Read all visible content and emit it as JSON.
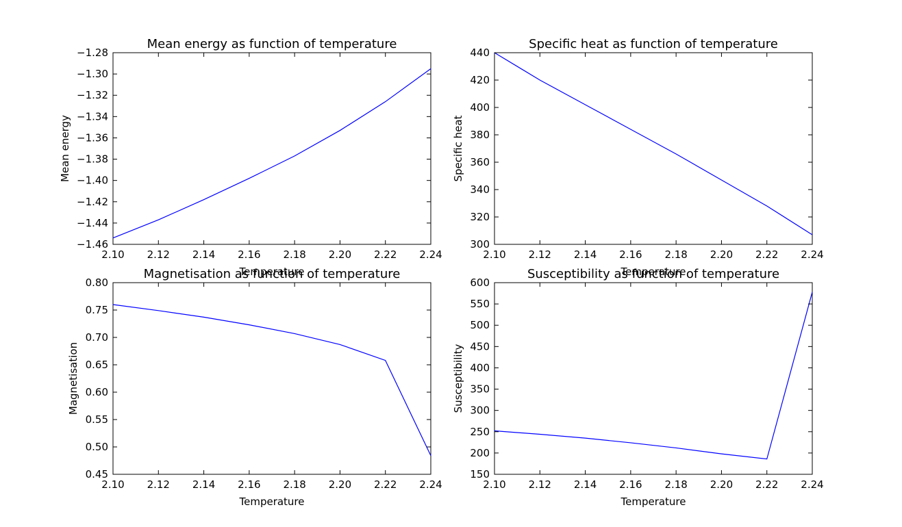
{
  "chart_data": [
    {
      "type": "line",
      "title": "Mean energy as function of temperature",
      "xlabel": "Temperature",
      "ylabel": "Mean energy",
      "xlim": [
        2.1,
        2.24
      ],
      "ylim": [
        -1.46,
        -1.28
      ],
      "xticks": [
        "2.10",
        "2.12",
        "2.14",
        "2.16",
        "2.18",
        "2.20",
        "2.22",
        "2.24"
      ],
      "yticks": [
        "−1.46",
        "−1.44",
        "−1.42",
        "−1.40",
        "−1.38",
        "−1.36",
        "−1.34",
        "−1.32",
        "−1.30",
        "−1.28"
      ],
      "color": "#0000ff",
      "x": [
        2.1,
        2.12,
        2.14,
        2.16,
        2.18,
        2.2,
        2.22,
        2.24
      ],
      "y": [
        -1.454,
        -1.437,
        -1.418,
        -1.398,
        -1.377,
        -1.353,
        -1.326,
        -1.295
      ]
    },
    {
      "type": "line",
      "title": "Specific heat as function of temperature",
      "xlabel": "Temperature",
      "ylabel": "Specific heat",
      "xlim": [
        2.1,
        2.24
      ],
      "ylim": [
        300,
        440
      ],
      "xticks": [
        "2.10",
        "2.12",
        "2.14",
        "2.16",
        "2.18",
        "2.20",
        "2.22",
        "2.24"
      ],
      "yticks": [
        "300",
        "320",
        "340",
        "360",
        "380",
        "400",
        "420",
        "440"
      ],
      "color": "#0000ff",
      "x": [
        2.1,
        2.12,
        2.14,
        2.16,
        2.18,
        2.2,
        2.22,
        2.24
      ],
      "y": [
        440,
        420,
        402,
        384,
        366,
        347,
        328,
        307
      ]
    },
    {
      "type": "line",
      "title": "Magnetisation as function of temperature",
      "xlabel": "Temperature",
      "ylabel": "Magnetisation",
      "xlim": [
        2.1,
        2.24
      ],
      "ylim": [
        0.45,
        0.8
      ],
      "xticks": [
        "2.10",
        "2.12",
        "2.14",
        "2.16",
        "2.18",
        "2.20",
        "2.22",
        "2.24"
      ],
      "yticks": [
        "0.45",
        "0.50",
        "0.55",
        "0.60",
        "0.65",
        "0.70",
        "0.75",
        "0.80"
      ],
      "color": "#0000ff",
      "x": [
        2.1,
        2.12,
        2.14,
        2.16,
        2.18,
        2.2,
        2.22,
        2.24
      ],
      "y": [
        0.76,
        0.749,
        0.737,
        0.723,
        0.707,
        0.687,
        0.658,
        0.484
      ]
    },
    {
      "type": "line",
      "title": "Susceptibility as function of temperature",
      "xlabel": "Temperature",
      "ylabel": "Susceptibility",
      "xlim": [
        2.1,
        2.24
      ],
      "ylim": [
        150,
        600
      ],
      "xticks": [
        "2.10",
        "2.12",
        "2.14",
        "2.16",
        "2.18",
        "2.20",
        "2.22",
        "2.24"
      ],
      "yticks": [
        "150",
        "200",
        "250",
        "300",
        "350",
        "400",
        "450",
        "500",
        "550",
        "600"
      ],
      "color": "#0000ff",
      "x": [
        2.1,
        2.12,
        2.14,
        2.16,
        2.18,
        2.2,
        2.22,
        2.24
      ],
      "y": [
        252,
        244,
        235,
        224,
        212,
        198,
        186,
        578
      ]
    }
  ]
}
